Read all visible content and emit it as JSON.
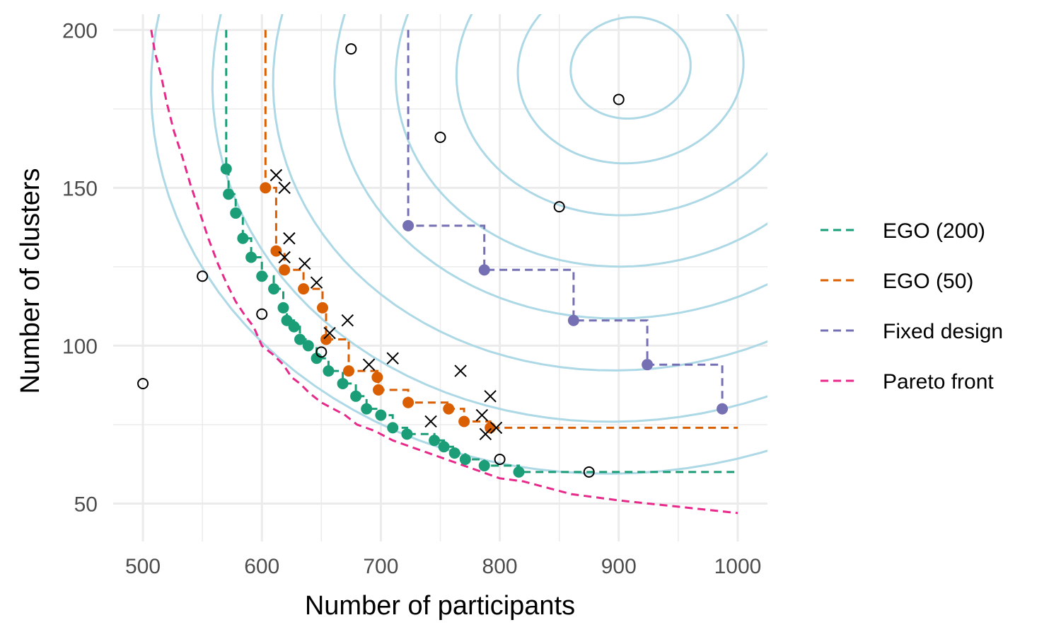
{
  "chart_data": {
    "type": "scatter",
    "title": "",
    "xlabel": "Number of participants",
    "ylabel": "Number of clusters",
    "xlim": [
      475,
      1025
    ],
    "ylim": [
      38,
      205
    ],
    "x_ticks": [
      500,
      600,
      700,
      800,
      900,
      1000
    ],
    "y_ticks": [
      50,
      100,
      150,
      200
    ],
    "grid": true,
    "legend_position": "right",
    "colors": {
      "contour": "#add8e6",
      "ego200": "#1b9e77",
      "ego50": "#d95f02",
      "fixed": "#7570b3",
      "pareto": "#e7298a",
      "markers": "#000000",
      "grid": "#ebebeb"
    },
    "legend": [
      {
        "name": "EGO (200)",
        "color": "#1b9e77"
      },
      {
        "name": "EGO (50)",
        "color": "#d95f02"
      },
      {
        "name": "Fixed design",
        "color": "#7570b3"
      },
      {
        "name": "Pareto front",
        "color": "#e7298a"
      }
    ],
    "contour_center": [
      910,
      188
    ],
    "contour_scales": [
      85,
      160,
      247,
      333,
      420,
      507,
      593,
      680
    ],
    "series": [
      {
        "name": "EGO (200)",
        "color": "#1b9e77",
        "points": [
          [
            570,
            156
          ],
          [
            572,
            148
          ],
          [
            578,
            142
          ],
          [
            584,
            134
          ],
          [
            591,
            128
          ],
          [
            600,
            122
          ],
          [
            610,
            118
          ],
          [
            618,
            112
          ],
          [
            621,
            108
          ],
          [
            627,
            106
          ],
          [
            632,
            102
          ],
          [
            639,
            100
          ],
          [
            646,
            96
          ],
          [
            656,
            92
          ],
          [
            668,
            88
          ],
          [
            679,
            84
          ],
          [
            688,
            80
          ],
          [
            700,
            78
          ],
          [
            710,
            74
          ],
          [
            722,
            72
          ],
          [
            745,
            70
          ],
          [
            753,
            68
          ],
          [
            762,
            66
          ],
          [
            771,
            64
          ],
          [
            787,
            62
          ],
          [
            816,
            60
          ]
        ],
        "step_line": [
          [
            570,
            200
          ],
          [
            570,
            156
          ],
          [
            572,
            156
          ],
          [
            572,
            148
          ],
          [
            578,
            148
          ],
          [
            578,
            142
          ],
          [
            584,
            142
          ],
          [
            584,
            134
          ],
          [
            591,
            134
          ],
          [
            591,
            128
          ],
          [
            600,
            128
          ],
          [
            600,
            122
          ],
          [
            610,
            122
          ],
          [
            610,
            118
          ],
          [
            618,
            118
          ],
          [
            618,
            112
          ],
          [
            621,
            112
          ],
          [
            621,
            108
          ],
          [
            627,
            108
          ],
          [
            627,
            106
          ],
          [
            632,
            106
          ],
          [
            632,
            102
          ],
          [
            639,
            102
          ],
          [
            639,
            100
          ],
          [
            646,
            100
          ],
          [
            646,
            96
          ],
          [
            656,
            96
          ],
          [
            656,
            92
          ],
          [
            668,
            92
          ],
          [
            668,
            88
          ],
          [
            679,
            88
          ],
          [
            679,
            84
          ],
          [
            688,
            84
          ],
          [
            688,
            80
          ],
          [
            700,
            80
          ],
          [
            700,
            78
          ],
          [
            710,
            78
          ],
          [
            710,
            74
          ],
          [
            722,
            74
          ],
          [
            722,
            72
          ],
          [
            745,
            72
          ],
          [
            745,
            70
          ],
          [
            753,
            70
          ],
          [
            753,
            68
          ],
          [
            762,
            68
          ],
          [
            762,
            66
          ],
          [
            771,
            66
          ],
          [
            771,
            64
          ],
          [
            787,
            64
          ],
          [
            787,
            62
          ],
          [
            816,
            62
          ],
          [
            816,
            60
          ],
          [
            1000,
            60
          ]
        ]
      },
      {
        "name": "EGO (50)",
        "color": "#d95f02",
        "points": [
          [
            603,
            150
          ],
          [
            612,
            130
          ],
          [
            619,
            124
          ],
          [
            635,
            118
          ],
          [
            651,
            112
          ],
          [
            654,
            102
          ],
          [
            673,
            92
          ],
          [
            697,
            90
          ],
          [
            698,
            86
          ],
          [
            723,
            82
          ],
          [
            757,
            80
          ],
          [
            770,
            76
          ],
          [
            792,
            74
          ]
        ],
        "step_line": [
          [
            603,
            200
          ],
          [
            603,
            150
          ],
          [
            612,
            150
          ],
          [
            612,
            130
          ],
          [
            619,
            130
          ],
          [
            619,
            124
          ],
          [
            635,
            124
          ],
          [
            635,
            118
          ],
          [
            651,
            118
          ],
          [
            651,
            112
          ],
          [
            654,
            112
          ],
          [
            654,
            102
          ],
          [
            673,
            102
          ],
          [
            673,
            92
          ],
          [
            697,
            92
          ],
          [
            697,
            90
          ],
          [
            698,
            90
          ],
          [
            698,
            86
          ],
          [
            723,
            86
          ],
          [
            723,
            82
          ],
          [
            757,
            82
          ],
          [
            757,
            80
          ],
          [
            770,
            80
          ],
          [
            770,
            76
          ],
          [
            792,
            76
          ],
          [
            792,
            74
          ],
          [
            1000,
            74
          ]
        ]
      },
      {
        "name": "Fixed design",
        "color": "#7570b3",
        "points": [
          [
            723,
            138
          ],
          [
            787,
            124
          ],
          [
            862,
            108
          ],
          [
            924,
            94
          ],
          [
            987,
            80
          ]
        ],
        "step_line": [
          [
            723,
            200
          ],
          [
            723,
            138
          ],
          [
            787,
            138
          ],
          [
            787,
            124
          ],
          [
            862,
            124
          ],
          [
            862,
            108
          ],
          [
            924,
            108
          ],
          [
            924,
            94
          ],
          [
            987,
            94
          ],
          [
            987,
            80
          ]
        ]
      },
      {
        "name": "Pareto front",
        "color": "#e7298a",
        "step_line": [
          [
            507,
            200
          ],
          [
            510,
            193
          ],
          [
            515,
            186
          ],
          [
            520,
            177
          ],
          [
            526,
            168
          ],
          [
            533,
            160
          ],
          [
            540,
            151
          ],
          [
            548,
            142
          ],
          [
            555,
            134
          ],
          [
            563,
            126
          ],
          [
            570,
            120
          ],
          [
            578,
            114
          ],
          [
            585,
            110
          ],
          [
            593,
            106
          ],
          [
            600,
            100
          ],
          [
            610,
            97
          ],
          [
            618,
            94
          ],
          [
            625,
            90
          ],
          [
            632,
            88
          ],
          [
            640,
            85
          ],
          [
            650,
            82
          ],
          [
            660,
            80
          ],
          [
            670,
            78
          ],
          [
            680,
            75
          ],
          [
            695,
            73
          ],
          [
            710,
            70
          ],
          [
            725,
            68
          ],
          [
            740,
            66
          ],
          [
            755,
            64
          ],
          [
            770,
            62
          ],
          [
            785,
            60
          ],
          [
            800,
            58
          ],
          [
            820,
            57
          ],
          [
            840,
            55
          ],
          [
            860,
            53
          ],
          [
            880,
            52
          ],
          [
            900,
            51
          ],
          [
            925,
            50
          ],
          [
            950,
            49
          ],
          [
            975,
            48
          ],
          [
            1000,
            47
          ]
        ]
      }
    ],
    "open_circles": [
      [
        500,
        88
      ],
      [
        550,
        122
      ],
      [
        600,
        110
      ],
      [
        650,
        98
      ],
      [
        675,
        194
      ],
      [
        750,
        166
      ],
      [
        800,
        64
      ],
      [
        850,
        144
      ],
      [
        875,
        60
      ],
      [
        900,
        178
      ]
    ],
    "crosses": [
      [
        612,
        154
      ],
      [
        619,
        150
      ],
      [
        623,
        134
      ],
      [
        619,
        128
      ],
      [
        636,
        126
      ],
      [
        646,
        120
      ],
      [
        657,
        104
      ],
      [
        672,
        108
      ],
      [
        690,
        94
      ],
      [
        710,
        96
      ],
      [
        742,
        76
      ],
      [
        767,
        92
      ],
      [
        785,
        78
      ],
      [
        788,
        72
      ],
      [
        792,
        84
      ],
      [
        797,
        74
      ]
    ]
  }
}
